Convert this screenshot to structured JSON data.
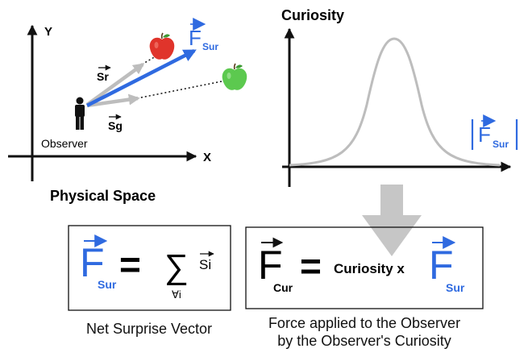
{
  "physical_space": {
    "title": "Physical Space",
    "axis_y": "Y",
    "axis_x": "X",
    "observer_label": "Observer",
    "vec_sr": "Sr",
    "vec_sg": "Sg",
    "vec_f": "F",
    "vec_f_sub": "Sur"
  },
  "curiosity_plot": {
    "title": "Curiosity",
    "x_label": "F",
    "x_label_sub": "Sur"
  },
  "eq_left": {
    "lhs": "F",
    "lhs_sub": "Sur",
    "equals": "=",
    "sum": "∑",
    "sum_sub": "∀i",
    "term": "Si",
    "caption": "Net Surprise Vector"
  },
  "eq_right": {
    "lhs": "F",
    "lhs_sub": "Cur",
    "equals": "=",
    "mid": "Curiosity x",
    "rhs": "F",
    "rhs_sub": "Sur",
    "caption_line1": "Force applied to the Observer",
    "caption_line2": "by the Observer's Curiosity"
  },
  "colors": {
    "blue": "#2f6ae0",
    "gray": "#bdbdbd",
    "red_apple": "#e0342b",
    "green_apple": "#5cc94f",
    "axis": "#111111"
  },
  "icons": [
    "observer-person-icon",
    "red-apple-icon",
    "green-apple-icon",
    "down-arrow-icon"
  ]
}
